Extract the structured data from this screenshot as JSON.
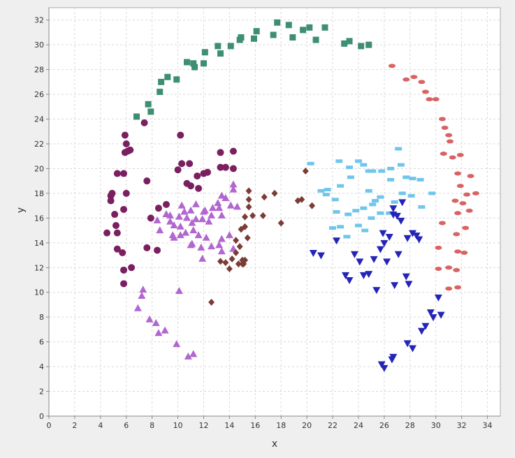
{
  "chart_data": {
    "type": "scatter",
    "title": "",
    "xlabel": "x",
    "ylabel": "y",
    "xlim": [
      0,
      35
    ],
    "ylim": [
      0,
      33
    ],
    "xticks": [
      0,
      2,
      4,
      6,
      8,
      10,
      12,
      14,
      16,
      18,
      20,
      22,
      24,
      26,
      28,
      30,
      32,
      34
    ],
    "yticks": [
      0,
      2,
      4,
      6,
      8,
      10,
      12,
      14,
      16,
      18,
      20,
      22,
      24,
      26,
      28,
      30,
      32
    ],
    "grid": true,
    "legend": "none",
    "series": [
      {
        "marker": "square",
        "color": "#3e8f72",
        "points": [
          [
            6.8,
            24.2
          ],
          [
            7.7,
            25.2
          ],
          [
            7.9,
            24.6
          ],
          [
            8.6,
            26.2
          ],
          [
            8.7,
            27.0
          ],
          [
            9.2,
            27.4
          ],
          [
            9.9,
            27.2
          ],
          [
            10.7,
            28.6
          ],
          [
            11.3,
            28.2
          ],
          [
            11.2,
            28.5
          ],
          [
            12.0,
            28.5
          ],
          [
            12.1,
            29.4
          ],
          [
            13.1,
            29.9
          ],
          [
            13.3,
            29.3
          ],
          [
            14.1,
            29.9
          ],
          [
            14.8,
            30.4
          ],
          [
            14.9,
            30.6
          ],
          [
            15.9,
            30.5
          ],
          [
            16.1,
            31.1
          ],
          [
            17.4,
            30.8
          ],
          [
            17.7,
            31.8
          ],
          [
            18.6,
            31.6
          ],
          [
            18.9,
            30.6
          ],
          [
            19.7,
            31.2
          ],
          [
            20.2,
            31.4
          ],
          [
            20.7,
            30.4
          ],
          [
            21.4,
            31.4
          ],
          [
            22.9,
            30.1
          ],
          [
            23.3,
            30.3
          ],
          [
            24.2,
            29.9
          ],
          [
            24.8,
            30.0
          ]
        ]
      },
      {
        "marker": "ellipse",
        "color": "#d96363",
        "points": [
          [
            26.6,
            28.3
          ],
          [
            27.7,
            27.2
          ],
          [
            28.3,
            27.4
          ],
          [
            28.9,
            27.0
          ],
          [
            29.2,
            26.2
          ],
          [
            29.5,
            25.6
          ],
          [
            30.0,
            25.6
          ],
          [
            30.5,
            24.0
          ],
          [
            30.7,
            23.3
          ],
          [
            31.0,
            22.7
          ],
          [
            31.1,
            22.2
          ],
          [
            30.6,
            21.2
          ],
          [
            31.3,
            20.9
          ],
          [
            31.9,
            21.1
          ],
          [
            31.7,
            19.6
          ],
          [
            32.7,
            19.4
          ],
          [
            31.9,
            18.6
          ],
          [
            32.4,
            17.9
          ],
          [
            33.1,
            18.0
          ],
          [
            31.5,
            17.4
          ],
          [
            32.1,
            17.2
          ],
          [
            32.6,
            16.6
          ],
          [
            31.7,
            16.4
          ],
          [
            31.6,
            14.7
          ],
          [
            30.5,
            15.6
          ],
          [
            32.3,
            15.2
          ],
          [
            30.2,
            13.6
          ],
          [
            31.7,
            13.3
          ],
          [
            32.2,
            13.2
          ],
          [
            30.2,
            11.9
          ],
          [
            31.0,
            12.0
          ],
          [
            31.6,
            11.8
          ],
          [
            31.0,
            10.3
          ],
          [
            31.7,
            10.4
          ]
        ]
      },
      {
        "marker": "circle",
        "color": "#7a1f60",
        "points": [
          [
            6.3,
            21.5
          ],
          [
            5.9,
            21.3
          ],
          [
            6.1,
            21.4
          ],
          [
            5.9,
            22.7
          ],
          [
            7.4,
            23.7
          ],
          [
            6.0,
            22.0
          ],
          [
            5.3,
            19.6
          ],
          [
            5.8,
            19.6
          ],
          [
            6.0,
            18.0
          ],
          [
            4.8,
            17.8
          ],
          [
            4.9,
            18.0
          ],
          [
            4.8,
            17.4
          ],
          [
            5.8,
            16.7
          ],
          [
            5.1,
            16.3
          ],
          [
            5.2,
            15.4
          ],
          [
            4.5,
            14.8
          ],
          [
            5.3,
            14.8
          ],
          [
            5.7,
            13.2
          ],
          [
            5.3,
            13.5
          ],
          [
            5.8,
            11.8
          ],
          [
            6.4,
            12.0
          ],
          [
            5.8,
            10.7
          ],
          [
            7.6,
            19.0
          ],
          [
            7.6,
            13.6
          ],
          [
            8.4,
            13.4
          ],
          [
            7.9,
            16.0
          ],
          [
            8.5,
            16.8
          ],
          [
            9.1,
            17.1
          ],
          [
            10.3,
            20.4
          ],
          [
            10.2,
            22.7
          ],
          [
            10.9,
            20.4
          ],
          [
            11.5,
            19.4
          ],
          [
            11.0,
            18.6
          ],
          [
            11.6,
            18.4
          ],
          [
            12.0,
            19.6
          ],
          [
            12.3,
            19.7
          ],
          [
            13.3,
            20.1
          ],
          [
            13.7,
            20.1
          ],
          [
            14.3,
            20.0
          ],
          [
            13.3,
            21.3
          ],
          [
            14.3,
            21.4
          ],
          [
            10.0,
            19.9
          ],
          [
            10.7,
            18.8
          ]
        ]
      },
      {
        "marker": "triangle-up",
        "color": "#b266d0",
        "points": [
          [
            8.4,
            15.8
          ],
          [
            9.1,
            16.3
          ],
          [
            9.4,
            16.2
          ],
          [
            9.7,
            15.4
          ],
          [
            10.2,
            15.3
          ],
          [
            10.7,
            16.0
          ],
          [
            11.1,
            15.6
          ],
          [
            11.4,
            17.1
          ],
          [
            11.9,
            15.9
          ],
          [
            12.1,
            16.6
          ],
          [
            12.6,
            16.2
          ],
          [
            12.4,
            15.7
          ],
          [
            13.2,
            16.8
          ],
          [
            13.4,
            16.2
          ],
          [
            14.1,
            17.0
          ],
          [
            14.6,
            16.9
          ],
          [
            14.3,
            18.3
          ],
          [
            14.3,
            18.7
          ],
          [
            13.7,
            17.6
          ],
          [
            13.4,
            17.8
          ],
          [
            13.1,
            17.2
          ],
          [
            12.7,
            16.8
          ],
          [
            12.0,
            16.5
          ],
          [
            11.0,
            16.6
          ],
          [
            10.3,
            17.0
          ],
          [
            10.6,
            14.8
          ],
          [
            11.1,
            13.9
          ],
          [
            11.0,
            13.8
          ],
          [
            11.8,
            13.6
          ],
          [
            11.9,
            12.7
          ],
          [
            13.2,
            13.8
          ],
          [
            13.4,
            14.3
          ],
          [
            14.0,
            14.6
          ],
          [
            14.3,
            13.5
          ],
          [
            13.4,
            13.3
          ],
          [
            12.6,
            13.7
          ],
          [
            12.2,
            14.4
          ],
          [
            11.6,
            14.6
          ],
          [
            11.4,
            15.9
          ],
          [
            10.1,
            16.1
          ],
          [
            9.4,
            15.7
          ],
          [
            10.5,
            16.5
          ],
          [
            8.6,
            15.0
          ],
          [
            9.7,
            14.4
          ],
          [
            9.6,
            14.6
          ],
          [
            10.2,
            14.6
          ],
          [
            11.2,
            15.0
          ],
          [
            7.3,
            10.2
          ],
          [
            7.2,
            9.7
          ],
          [
            6.9,
            8.7
          ],
          [
            7.8,
            7.8
          ],
          [
            8.3,
            7.5
          ],
          [
            8.5,
            6.7
          ],
          [
            9.0,
            6.9
          ],
          [
            9.9,
            5.8
          ],
          [
            10.8,
            4.8
          ],
          [
            11.2,
            5.0
          ],
          [
            10.1,
            10.1
          ]
        ]
      },
      {
        "marker": "diamond",
        "color": "#7a3d36",
        "points": [
          [
            12.6,
            9.2
          ],
          [
            13.3,
            12.5
          ],
          [
            13.7,
            12.4
          ],
          [
            14.0,
            11.9
          ],
          [
            14.2,
            12.7
          ],
          [
            14.5,
            13.2
          ],
          [
            14.7,
            12.3
          ],
          [
            15.0,
            12.3
          ],
          [
            15.2,
            12.6
          ],
          [
            14.5,
            14.2
          ],
          [
            14.9,
            15.1
          ],
          [
            15.2,
            15.3
          ],
          [
            15.4,
            14.4
          ],
          [
            15.8,
            16.2
          ],
          [
            15.2,
            16.1
          ],
          [
            15.5,
            16.9
          ],
          [
            15.5,
            17.5
          ],
          [
            15.5,
            18.2
          ],
          [
            16.6,
            16.2
          ],
          [
            16.7,
            17.7
          ],
          [
            17.5,
            18.0
          ],
          [
            18.0,
            15.6
          ],
          [
            19.3,
            17.4
          ],
          [
            19.6,
            17.5
          ],
          [
            20.4,
            17.0
          ],
          [
            19.9,
            19.8
          ],
          [
            15.0,
            12.6
          ],
          [
            15.1,
            12.3
          ],
          [
            14.8,
            13.7
          ]
        ]
      },
      {
        "marker": "dash",
        "color": "#6fc6eb",
        "points": [
          [
            20.3,
            20.4
          ],
          [
            21.1,
            18.2
          ],
          [
            21.5,
            17.9
          ],
          [
            21.6,
            18.3
          ],
          [
            22.2,
            17.5
          ],
          [
            22.5,
            20.6
          ],
          [
            22.6,
            18.6
          ],
          [
            23.3,
            20.1
          ],
          [
            23.4,
            19.3
          ],
          [
            24.0,
            20.6
          ],
          [
            24.4,
            20.3
          ],
          [
            24.8,
            19.8
          ],
          [
            25.1,
            19.8
          ],
          [
            25.8,
            19.8
          ],
          [
            26.5,
            20.0
          ],
          [
            27.1,
            21.6
          ],
          [
            27.3,
            20.3
          ],
          [
            27.7,
            19.3
          ],
          [
            28.2,
            19.2
          ],
          [
            28.8,
            19.1
          ],
          [
            29.7,
            18.0
          ],
          [
            28.9,
            16.9
          ],
          [
            28.1,
            17.8
          ],
          [
            27.4,
            18.0
          ],
          [
            26.8,
            17.3
          ],
          [
            26.4,
            16.4
          ],
          [
            25.7,
            16.4
          ],
          [
            25.3,
            17.4
          ],
          [
            24.8,
            18.2
          ],
          [
            24.4,
            16.8
          ],
          [
            23.8,
            16.6
          ],
          [
            23.2,
            16.3
          ],
          [
            22.3,
            16.5
          ],
          [
            22.0,
            15.2
          ],
          [
            22.6,
            15.3
          ],
          [
            23.1,
            14.5
          ],
          [
            24.0,
            15.4
          ],
          [
            24.5,
            15.0
          ],
          [
            25.1,
            17.1
          ],
          [
            25.7,
            17.7
          ],
          [
            26.5,
            19.1
          ],
          [
            25.0,
            16.0
          ]
        ]
      },
      {
        "marker": "triangle-down",
        "color": "#2424b8",
        "points": [
          [
            20.5,
            13.2
          ],
          [
            21.1,
            13.0
          ],
          [
            22.3,
            14.2
          ],
          [
            23.0,
            11.4
          ],
          [
            23.3,
            11.0
          ],
          [
            23.7,
            13.1
          ],
          [
            24.1,
            12.5
          ],
          [
            24.4,
            11.4
          ],
          [
            24.8,
            11.5
          ],
          [
            25.2,
            12.7
          ],
          [
            25.4,
            10.2
          ],
          [
            25.7,
            13.5
          ],
          [
            26.0,
            14.0
          ],
          [
            25.9,
            14.8
          ],
          [
            26.4,
            14.5
          ],
          [
            26.7,
            16.3
          ],
          [
            27.0,
            16.2
          ],
          [
            27.3,
            15.8
          ],
          [
            27.1,
            13.1
          ],
          [
            27.8,
            14.4
          ],
          [
            28.2,
            14.8
          ],
          [
            28.5,
            14.6
          ],
          [
            28.7,
            14.3
          ],
          [
            27.7,
            11.3
          ],
          [
            27.9,
            10.7
          ],
          [
            26.8,
            10.6
          ],
          [
            26.2,
            12.5
          ],
          [
            26.7,
            16.8
          ],
          [
            27.4,
            17.3
          ],
          [
            25.8,
            4.2
          ],
          [
            26.0,
            3.9
          ],
          [
            26.6,
            4.6
          ],
          [
            26.7,
            4.8
          ],
          [
            27.8,
            5.9
          ],
          [
            28.2,
            5.5
          ],
          [
            28.9,
            6.9
          ],
          [
            29.2,
            7.3
          ],
          [
            29.8,
            8.0
          ],
          [
            29.6,
            8.4
          ],
          [
            30.4,
            8.2
          ],
          [
            30.2,
            9.6
          ]
        ]
      }
    ]
  }
}
